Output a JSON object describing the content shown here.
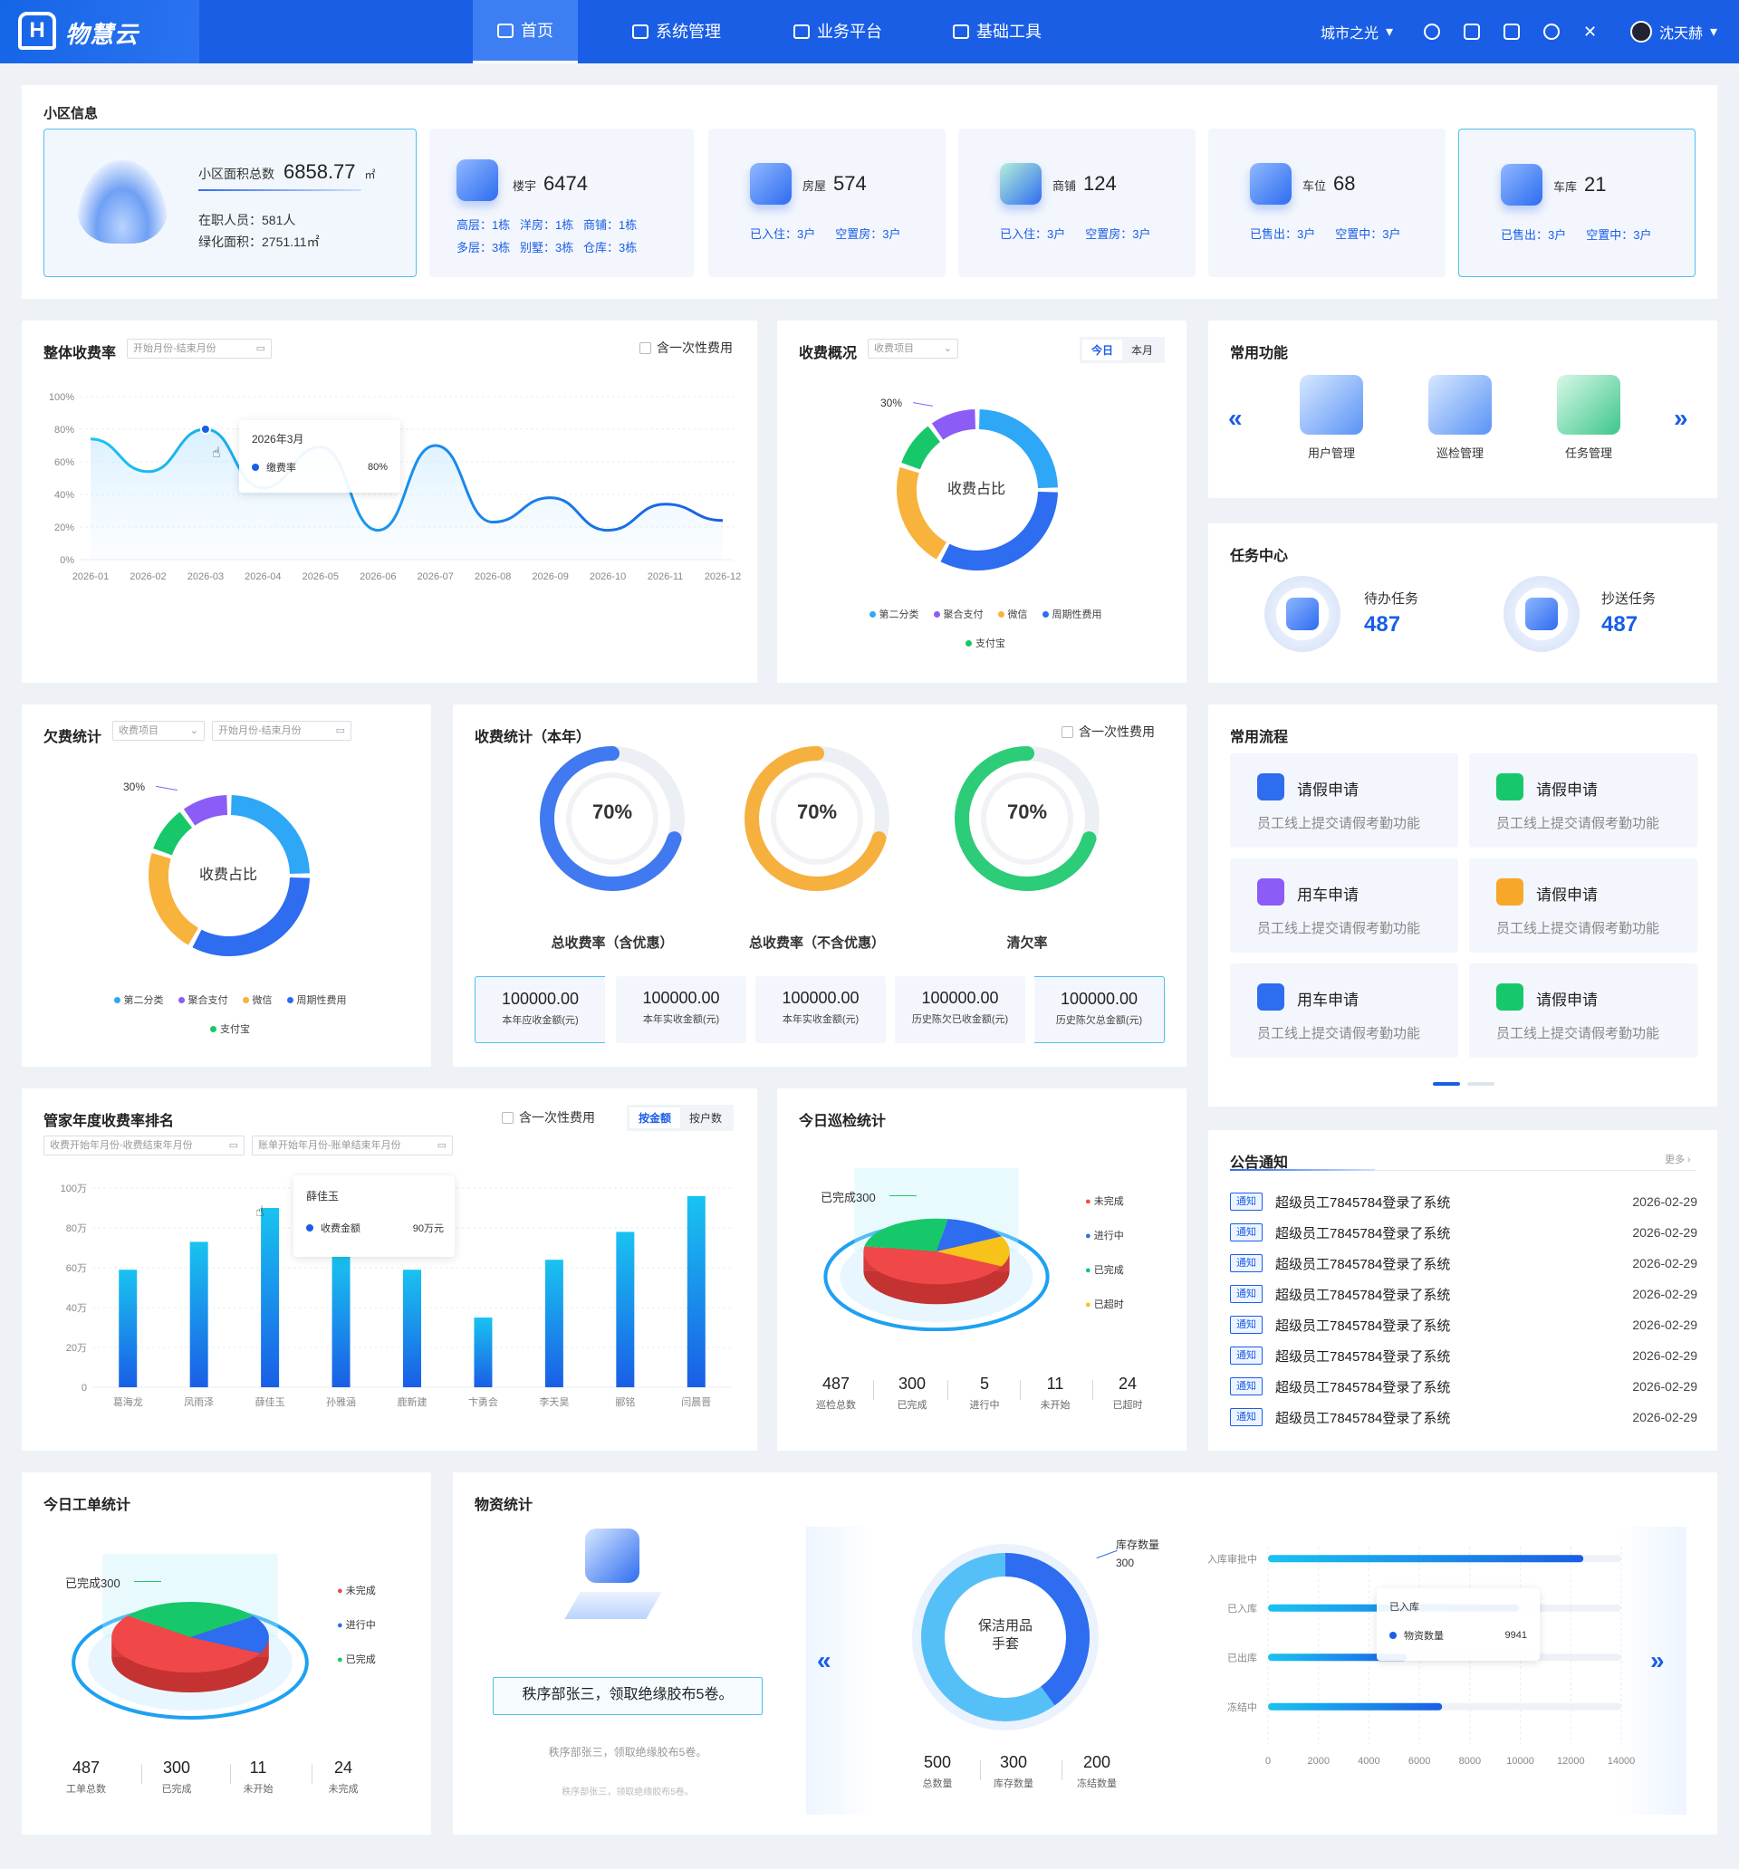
{
  "nav": {
    "logo": "物慧云",
    "items": [
      {
        "label": "首页",
        "icon": "home-icon"
      },
      {
        "label": "系统管理",
        "icon": "monitor-icon"
      },
      {
        "label": "业务平台",
        "icon": "document-icon"
      },
      {
        "label": "基础工具",
        "icon": "toolbox-icon"
      }
    ],
    "community": "城市之光",
    "user": "沈天赫",
    "colors": {
      "bar": "#1a5ee6",
      "active": "#3d7ff2"
    }
  },
  "community_info": {
    "title": "小区信息",
    "area_label": "小区面积总数",
    "area_value": "6858.77",
    "area_unit": "㎡",
    "staff": "在职人员：581人",
    "green": "绿化面积：2751.11㎡",
    "building": {
      "label": "楼宇",
      "value": "6474",
      "rows": [
        "高层：1栋",
        "洋房：1栋",
        "商铺：1栋",
        "多层：3栋",
        "别墅：3栋",
        "仓库：3栋"
      ]
    },
    "house": {
      "label": "房屋",
      "value": "574",
      "a": "已入住：3户",
      "b": "空置房：3户"
    },
    "shop": {
      "label": "商铺",
      "value": "124",
      "a": "已入住：3户",
      "b": "空置房：3户"
    },
    "parking": {
      "label": "车位",
      "value": "68",
      "a": "已售出：3户",
      "b": "空置中：3户"
    },
    "garage": {
      "label": "车库",
      "value": "21",
      "a": "已售出：3户",
      "b": "空置中：3户"
    }
  },
  "overall_rate": {
    "title": "整体收费率",
    "date_placeholder": "开始月份-结束月份",
    "include_once": "含一次性费用",
    "tooltip": {
      "title": "2026年3月",
      "name": "缴费率",
      "value": "80%"
    }
  },
  "fee_overview": {
    "title": "收费概况",
    "select": "收费项目",
    "tabs": [
      "今日",
      "本月"
    ],
    "center": "收费占比",
    "pct_label": "30%"
  },
  "common_functions": {
    "title": "常用功能",
    "items": [
      {
        "label": "用户管理"
      },
      {
        "label": "巡检管理"
      },
      {
        "label": "任务管理"
      }
    ]
  },
  "task_center": {
    "title": "任务中心",
    "todo_label": "待办任务",
    "todo_value": "487",
    "cc_label": "抄送任务",
    "cc_value": "487"
  },
  "arrears": {
    "title": "欠费统计",
    "select": "收费项目",
    "date_placeholder": "开始月份-结束月份",
    "center": "收费占比",
    "pct_label": "30%"
  },
  "fee_stats": {
    "title": "收费统计（本年）",
    "include_once": "含一次性费用",
    "gauges": [
      {
        "value": "70%",
        "label": "总收费率（含优惠）",
        "color": "#2e6cf0"
      },
      {
        "value": "70%",
        "label": "总收费率（不含优惠）",
        "color": "#f7a82a"
      },
      {
        "value": "70%",
        "label": "清欠率",
        "color": "#17c86a"
      }
    ],
    "boxes": [
      {
        "value": "100000.00",
        "label": "本年应收金额(元)"
      },
      {
        "value": "100000.00",
        "label": "本年实收金额(元)"
      },
      {
        "value": "100000.00",
        "label": "本年实收金额(元)"
      },
      {
        "value": "100000.00",
        "label": "历史陈欠已收金额(元)"
      },
      {
        "value": "100000.00",
        "label": "历史陈欠总金额(元)"
      }
    ]
  },
  "processes": {
    "title": "常用流程",
    "items": [
      {
        "title": "请假申请",
        "desc": "员工线上提交请假考勤功能",
        "color": "#2e6cf0"
      },
      {
        "title": "请假申请",
        "desc": "员工线上提交请假考勤功能",
        "color": "#17c86a"
      },
      {
        "title": "用车申请",
        "desc": "员工线上提交请假考勤功能",
        "color": "#8b5cf6"
      },
      {
        "title": "请假申请",
        "desc": "员工线上提交请假考勤功能",
        "color": "#f7a82a"
      },
      {
        "title": "用车申请",
        "desc": "员工线上提交请假考勤功能",
        "color": "#2e6cf0"
      },
      {
        "title": "请假申请",
        "desc": "员工线上提交请假考勤功能",
        "color": "#17c86a"
      }
    ]
  },
  "ranking": {
    "title": "管家年度收费率排名",
    "include_once": "含一次性费用",
    "tabs": [
      "按金额",
      "按户数"
    ],
    "date1": "收费开始年月份-收费结束年月份",
    "date2": "账单开始年月份-账单结束年月份",
    "tooltip": {
      "title": "薛佳玉",
      "name": "收费金额",
      "value": "90万元"
    }
  },
  "patrol": {
    "title": "今日巡检统计",
    "callout": "已完成300",
    "legend": [
      {
        "name": "未完成",
        "color": "#f04848"
      },
      {
        "name": "进行中",
        "color": "#2e6cf0"
      },
      {
        "name": "已完成",
        "color": "#17c86a"
      },
      {
        "name": "已超时",
        "color": "#f7c21a"
      }
    ],
    "stats": [
      {
        "v": "487",
        "t": "巡检总数"
      },
      {
        "v": "300",
        "t": "已完成"
      },
      {
        "v": "5",
        "t": "进行中"
      },
      {
        "v": "11",
        "t": "未开始"
      },
      {
        "v": "24",
        "t": "已超时"
      }
    ]
  },
  "notices": {
    "title": "公告通知",
    "more": "更多",
    "tag": "通知",
    "items": [
      {
        "text": "超级员工7845784登录了系统",
        "date": "2026-02-29"
      },
      {
        "text": "超级员工7845784登录了系统",
        "date": "2026-02-29"
      },
      {
        "text": "超级员工7845784登录了系统",
        "date": "2026-02-29"
      },
      {
        "text": "超级员工7845784登录了系统",
        "date": "2026-02-29"
      },
      {
        "text": "超级员工7845784登录了系统",
        "date": "2026-02-29"
      },
      {
        "text": "超级员工7845784登录了系统",
        "date": "2026-02-29"
      },
      {
        "text": "超级员工7845784登录了系统",
        "date": "2026-02-29"
      },
      {
        "text": "超级员工7845784登录了系统",
        "date": "2026-02-29"
      }
    ]
  },
  "workorder": {
    "title": "今日工单统计",
    "callout": "已完成300",
    "legend": [
      {
        "name": "未完成",
        "color": "#f04848"
      },
      {
        "name": "进行中",
        "color": "#2e6cf0"
      },
      {
        "name": "已完成",
        "color": "#17c86a"
      }
    ],
    "stats": [
      {
        "v": "487",
        "t": "工单总数"
      },
      {
        "v": "300",
        "t": "已完成"
      },
      {
        "v": "11",
        "t": "未开始"
      },
      {
        "v": "24",
        "t": "未完成"
      }
    ]
  },
  "materials": {
    "title": "物资统计",
    "msg_main": "秩序部张三，领取绝缘胶布5卷。",
    "msg_2": "秩序部张三，领取绝缘胶布5卷。",
    "msg_3": "秩序部张三，领取绝缘胶布5卷。",
    "ring_center": [
      "保洁用品",
      "手套"
    ],
    "ring_label": "库存数量",
    "ring_value": "300",
    "stats": [
      {
        "v": "500",
        "t": "总数量"
      },
      {
        "v": "300",
        "t": "库存数量"
      },
      {
        "v": "200",
        "t": "冻结数量"
      }
    ],
    "tooltip": {
      "title": "已入库",
      "name": "物资数量",
      "value": "9941"
    }
  },
  "chart_data": [
    {
      "type": "line",
      "x": [
        "2026-01",
        "2026-02",
        "2026-03",
        "2026-04",
        "2026-05",
        "2026-06",
        "2026-07",
        "2026-08",
        "2026-09",
        "2026-10",
        "2026-11",
        "2026-12"
      ],
      "series": [
        {
          "name": "缴费率",
          "values": [
            74,
            54,
            80,
            44,
            69,
            18,
            70,
            23,
            38,
            18,
            34,
            24
          ]
        }
      ],
      "y_ticks": [
        "0%",
        "20%",
        "40%",
        "60%",
        "80%",
        "100%"
      ],
      "ylim": [
        0,
        100
      ]
    },
    {
      "type": "pie",
      "labels": [
        "第二分类",
        "聚合支付",
        "微信",
        "周期性费用",
        "支付宝"
      ],
      "values": [
        25,
        10,
        22,
        33,
        10
      ],
      "colors": [
        "#2ea7f6",
        "#8b5cf6",
        "#f7b33b",
        "#2e6cf0",
        "#17c86a"
      ]
    },
    {
      "type": "bar",
      "categories": [
        "葛海龙",
        "凤雨泽",
        "薛佳玉",
        "孙雅涵",
        "鹿新建",
        "卞勇会",
        "李天昊",
        "郦铭",
        "闫晨晋"
      ],
      "values": [
        59,
        73,
        90,
        66,
        59,
        35,
        64,
        78,
        96
      ],
      "y_ticks": [
        "0",
        "20万",
        "40万",
        "60万",
        "80万",
        "100万"
      ],
      "ylim": [
        0,
        100
      ]
    },
    {
      "type": "bar",
      "orientation": "horizontal",
      "categories": [
        "入库审批中",
        "已入库",
        "已出库",
        "冻结中"
      ],
      "values": [
        12500,
        9941,
        5500,
        6900
      ],
      "x_ticks": [
        "0",
        "2000",
        "4000",
        "6000",
        "8000",
        "10000",
        "12000",
        "14000"
      ],
      "xlim": [
        0,
        14000
      ]
    }
  ]
}
